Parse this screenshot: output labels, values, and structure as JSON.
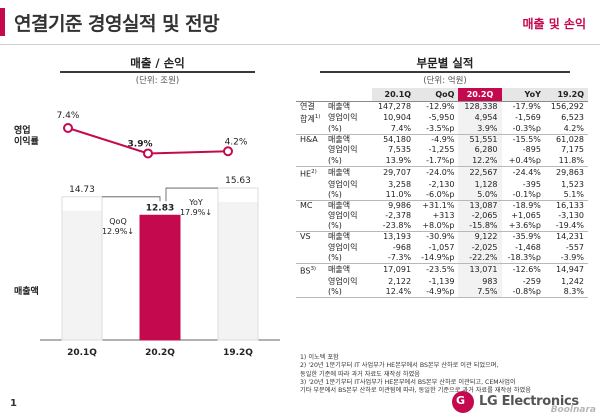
{
  "header": {
    "title": "연결기준 경영실적 및 전망",
    "section": "매출 및 손익"
  },
  "left_panel": {
    "title": "매출 / 손익",
    "unit": "(단위: 조원)",
    "margin_label_line1": "영업",
    "margin_label_line2": "이익률",
    "sales_label": "매출액"
  },
  "right_panel": {
    "title": "부문별 실적",
    "unit": "(단위: 억원)"
  },
  "chart_data": {
    "type": "bar",
    "categories": [
      "20.1Q",
      "20.2Q",
      "19.2Q"
    ],
    "series": [
      {
        "values": [
          14.73,
          12.83,
          15.63
        ],
        "colors": [
          "#ffffff",
          "#c5094f",
          "#ffffff"
        ]
      },
      {
        "values": [
          7.4,
          3.9,
          4.2
        ],
        "labels": [
          "7.4%",
          "3.9%",
          "4.2%"
        ]
      }
    ],
    "annotations": [
      {
        "label": "QoQ",
        "value": "12.9%"
      },
      {
        "label": "YoY",
        "value": "17.9%"
      }
    ],
    "colors": {
      "accent": "#c5094f",
      "bar_gray": "#dddddd"
    }
  },
  "table": {
    "headers": [
      "20.1Q",
      "QoQ",
      "20.2Q",
      "YoY",
      "19.2Q"
    ],
    "highlight_col": 2,
    "groups": [
      {
        "segment": "연결",
        "segment2": "합계",
        "sup": "1)",
        "rows": [
          {
            "metric": "매출액",
            "cells": [
              "147,278",
              "-12.9%",
              "128,338",
              "-17.9%",
              "156,292"
            ]
          },
          {
            "metric": "영업이익",
            "cells": [
              "10,904",
              "-5,950",
              "4,954",
              "-1,569",
              "6,523"
            ]
          },
          {
            "metric": "(%)",
            "cells": [
              "7.4%",
              "-3.5%p",
              "3.9%",
              "-0.3%p",
              "4.2%"
            ]
          }
        ]
      },
      {
        "segment": "H&A",
        "rows": [
          {
            "metric": "매출액",
            "cells": [
              "54,180",
              "-4.9%",
              "51,551",
              "-15.5%",
              "61,028"
            ]
          },
          {
            "metric": "영업이익",
            "cells": [
              "7,535",
              "-1,255",
              "6,280",
              "-895",
              "7,175"
            ]
          },
          {
            "metric": "(%)",
            "cells": [
              "13.9%",
              "-1.7%p",
              "12.2%",
              "+0.4%p",
              "11.8%"
            ]
          }
        ]
      },
      {
        "segment": "HE",
        "sup": "2)",
        "rows": [
          {
            "metric": "매출액",
            "cells": [
              "29,707",
              "-24.0%",
              "22,567",
              "-24.4%",
              "29,863"
            ]
          },
          {
            "metric": "영업이익",
            "cells": [
              "3,258",
              "-2,130",
              "1,128",
              "-395",
              "1,523"
            ]
          },
          {
            "metric": "(%)",
            "cells": [
              "11.0%",
              "-6.0%p",
              "5.0%",
              "-0.1%p",
              "5.1%"
            ]
          }
        ]
      },
      {
        "segment": "MC",
        "rows": [
          {
            "metric": "매출액",
            "cells": [
              "9,986",
              "+31.1%",
              "13,087",
              "-18.9%",
              "16,133"
            ]
          },
          {
            "metric": "영업이익",
            "cells": [
              "-2,378",
              "+313",
              "-2,065",
              "+1,065",
              "-3,130"
            ]
          },
          {
            "metric": "(%)",
            "cells": [
              "-23.8%",
              "+8.0%p",
              "-15.8%",
              "+3.6%p",
              "-19.4%"
            ]
          }
        ]
      },
      {
        "segment": "VS",
        "rows": [
          {
            "metric": "매출액",
            "cells": [
              "13,193",
              "-30.9%",
              "9,122",
              "-35.9%",
              "14,231"
            ]
          },
          {
            "metric": "영업이익",
            "cells": [
              "-968",
              "-1,057",
              "-2,025",
              "-1,468",
              "-557"
            ]
          },
          {
            "metric": "(%)",
            "cells": [
              "-7.3%",
              "-14.9%p",
              "-22.2%",
              "-18.3%p",
              "-3.9%"
            ]
          }
        ]
      },
      {
        "segment": "BS",
        "sup": "3)",
        "rows": [
          {
            "metric": "매출액",
            "cells": [
              "17,091",
              "-23.5%",
              "13,071",
              "-12.6%",
              "14,947"
            ]
          },
          {
            "metric": "영업이익",
            "cells": [
              "2,122",
              "-1,139",
              "983",
              "-259",
              "1,242"
            ]
          },
          {
            "metric": "(%)",
            "cells": [
              "12.4%",
              "-4.9%p",
              "7.5%",
              "-0.8%p",
              "8.3%"
            ]
          }
        ]
      }
    ]
  },
  "footnotes": [
    "1) 이노텍 포함",
    "2) '20년 1분기부터 IT 사업부가 HE본부에서 BS본부 산하로 이관 되었으며,",
    "동일한 기준에 따라 과거 자료도 재작성 하였음",
    "3) '20년 1분기부터 IT사업부가 HE본부에서 BS본부 산하로 이관되고, CEM사업이",
    "기타 부문에서 BS본부 산하로 이관됨에 따라, 동일한 기준으로 과거 자료를 재작성 하였음"
  ],
  "footer": {
    "page_number": "1",
    "logo_face": "G",
    "logo_text": "LG Electronics",
    "watermark": "Boolnara"
  }
}
